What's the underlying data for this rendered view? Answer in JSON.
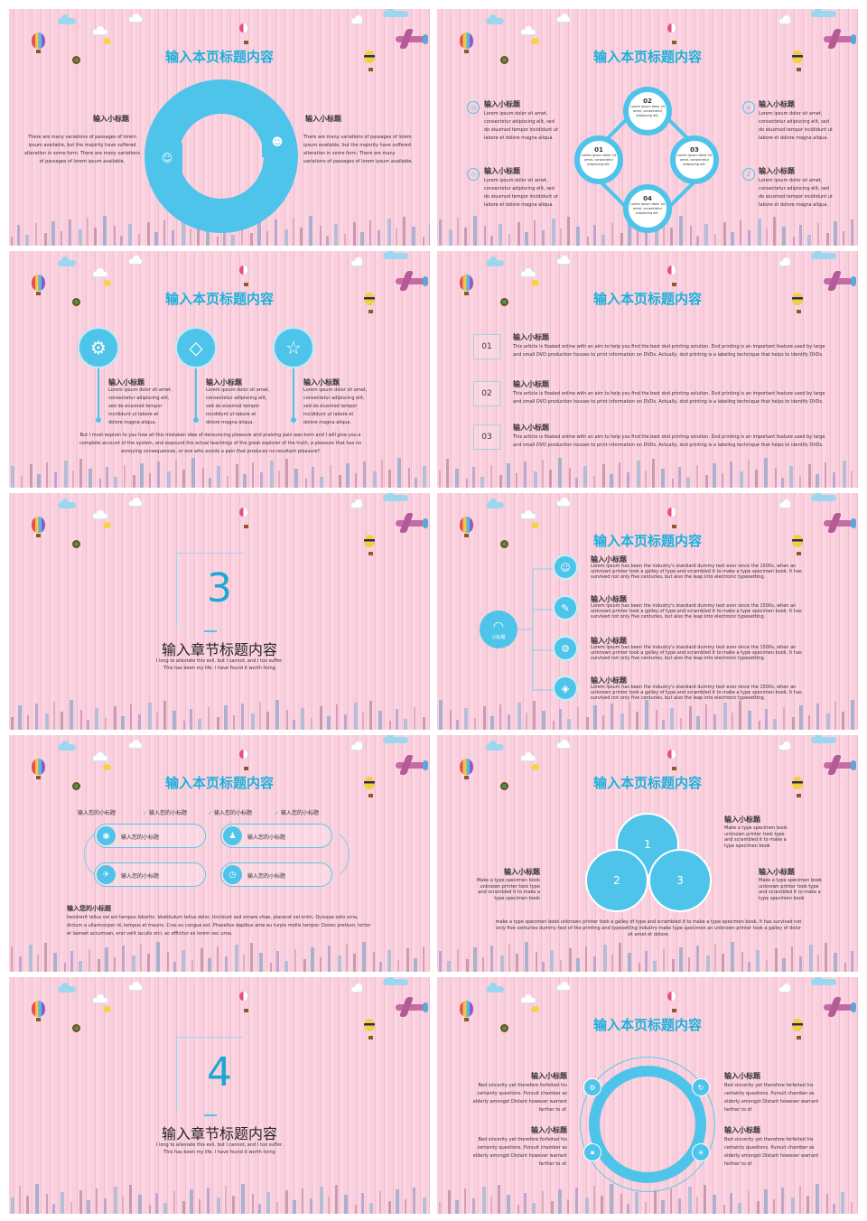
{
  "colors": {
    "accent": "#4fc4ea",
    "title": "#1cb1dc",
    "background": "#f8c9d8"
  },
  "page_title": "输入本页标题内容",
  "slide1": {
    "left_subtitle": "输入小标题",
    "left_text": "There are many variations of passages of lorem ipsum available, but the majority have suffered alteration in some form. There are many variations of passages of lorem ipsum available,",
    "right_subtitle": "输入小标题",
    "right_text": "There are many variations of passages of lorem ipsum available, but the majority have suffered alteration in some form. There are many variations of passages of lorem ipsum available,"
  },
  "slide2": {
    "nodes": [
      {
        "num": "01",
        "text": "Lorem ipsum dolor sit amet, consectetur adipiscing elit."
      },
      {
        "num": "02",
        "text": "Lorem ipsum dolor sit amet, consectetur adipiscing elit."
      },
      {
        "num": "03",
        "text": "Lorem ipsum dolor sit amet, consectetur adipiscing elit."
      },
      {
        "num": "04",
        "text": "Lorem ipsum dolor sit amet, consectetur adipiscing elit."
      }
    ],
    "items": [
      {
        "title": "输入小标题",
        "text": "Lorem ipsum dolor sit amet, consectetur adipiscing elit, sed do eiusmod tempor incididunt ut labore et dolore magna aliqua."
      },
      {
        "title": "输入小标题",
        "text": "Lorem ipsum dolor sit amet, consectetur adipiscing elit, sed do eiusmod tempor incididunt ut labore et dolore magna aliqua."
      },
      {
        "title": "输入小标题",
        "text": "Lorem ipsum dolor sit amet, consectetur adipiscing elit, sed do eiusmod tempor incididunt ut labore et dolore magna aliqua."
      },
      {
        "title": "输入小标题",
        "text": "Lorem ipsum dolor sit amet, consectetur adipiscing elit, sed do eiusmod tempor incididunt ut labore et dolore magna aliqua."
      }
    ]
  },
  "slide3": {
    "items": [
      {
        "title": "输入小标题",
        "text": "Lorem ipsum dolor sit amet, consectetur adipiscing elit, sed do eiusmod tempor incididunt ut labore et dolore magna aliqua."
      },
      {
        "title": "输入小标题",
        "text": "Lorem ipsum dolor sit amet, consectetur adipiscing elit, sed do eiusmod tempor incididunt ut labore et dolore magna aliqua."
      },
      {
        "title": "输入小标题",
        "text": "Lorem ipsum dolor sit amet, consectetur adipiscing elit, sed do eiusmod tempor incididunt ut labore et dolore magna aliqua."
      }
    ],
    "bottom_text": "But I must explain to you how all this mistaken idea of denouncing pleasure and praising pain was born and I will give you a complete account of the system, and expound the actual teachings of the great explorer of the truth, a pleasure that has no annoying consequences, or one who avoids a pain that produces no resultant pleasure?"
  },
  "slide4": {
    "items": [
      {
        "num": "01",
        "title": "输入小标题",
        "text": "This article is floated online with an aim to help you find the best dvd printing solution. Dvd printing is an important feature used by large and small DVD production houses to print information on DVDs. Actually, dvd printing is a labeling technique that helps to identify DVDs."
      },
      {
        "num": "02",
        "title": "输入小标题",
        "text": "This article is floated online with an aim to help you find the best dvd printing solution. Dvd printing is an important feature used by large and small DVD production houses to print information on DVDs. Actually, dvd printing is a labeling technique that helps to identify DVDs."
      },
      {
        "num": "03",
        "title": "输入小标题",
        "text": "This article is floated online with an aim to help you find the best dvd printing solution. Dvd printing is an important feature used by large and small DVD production houses to print information on DVDs. Actually, dvd printing is a labeling technique that helps to identify DVDs."
      }
    ]
  },
  "section3": {
    "number": "3",
    "title": "输入章节标题内容",
    "desc": "I long to alleviate this evil, but I cannot, and I too suffer. This has been my life. I have found it worth living"
  },
  "slide6": {
    "hub_label": "小标题",
    "items": [
      {
        "title": "输入小标题",
        "text": "Lorem Ipsum has been the industry's standard dummy text ever since the 1500s, when an unknown printer took a galley of type and scrambled it to make a type specimen book. It has survived not only five centuries, but also the leap into electronic typesetting."
      },
      {
        "title": "输入小标题",
        "text": "Lorem Ipsum has been the industry's standard dummy text ever since the 1500s, when an unknown printer took a galley of type and scrambled it to make a type specimen book. It has survived not only five centuries, but also the leap into electronic typesetting."
      },
      {
        "title": "输入小标题",
        "text": "Lorem Ipsum has been the industry's standard dummy text ever since the 1500s, when an unknown printer took a galley of type and scrambled it to make a type specimen book. It has survived not only five centuries, but also the leap into electronic typesetting."
      },
      {
        "title": "输入小标题",
        "text": "Lorem Ipsum has been the industry's standard dummy text ever since the 1500s, when an unknown printer took a galley of type and scrambled it to make a type specimen book. It has survived not only five centuries, but also the leap into electronic typesetting."
      }
    ]
  },
  "slide7": {
    "top_label": "输入您的小标题",
    "checks": [
      "输入您的小标题",
      "输入您的小标题",
      "输入您的小标题"
    ],
    "pills": [
      "输入您的小标题",
      "输入您的小标题",
      "输入您的小标题",
      "输入您的小标题"
    ],
    "bottom_title": "输入您的小标题",
    "bottom_text": "hendrerit tellus vel est tempus lobortis. Vestibulum tellus dolor, tincidunt sed ornare vitae, placerat vel enim. Quisque odio urna, dictum a ullamcorper id, tempus et mauris. Cras eu congue est. Phasellus dapibus ante eu turpis mollis tempor. Donec pretium, tortor et laoreet accumsan, erat velit iaculis orci, ac efficitur ex lorem nec urna."
  },
  "slide8": {
    "circles": [
      "1",
      "2",
      "3"
    ],
    "items": [
      {
        "title": "输入小标题",
        "text": "Make a type specimen book unknown printer took type and scrambled it to make a type specimen book"
      },
      {
        "title": "输入小标题",
        "text": "Make a type specimen book unknown printer took type and scrambled it to make a type specimen book"
      },
      {
        "title": "输入小标题",
        "text": "Make a type specimen book unknown printer took type and scrambled it to make a type specimen book"
      }
    ],
    "bottom_text": "make a type specimen book unknown printer took a galley of type and scrambled it to make a type specimen book. It has survived not only five centuries dummy text of the printing and typesetting industry make type specimen an unknown printer took a galley of dolor sit amet et dolore."
  },
  "section4": {
    "number": "4",
    "title": "输入章节标题内容",
    "desc": "I long to alleviate this evil, but I cannot, and I too suffer. This has been my life. I have found it worth living"
  },
  "slide10": {
    "items": [
      {
        "title": "输入小标题",
        "text": "Bed sincerity yet therefore forfeited his certainty questions. Pursuit chamber as elderly amongst Distant however warrant farther to of."
      },
      {
        "title": "输入小标题",
        "text": "Bed sincerity yet therefore forfeited his certainty questions. Pursuit chamber as elderly amongst Distant however warrant farther to of."
      },
      {
        "title": "输入小标题",
        "text": "Bed sincerity yet therefore forfeited his certainty questions. Pursuit chamber as elderly amongst Distant however warrant farther to of."
      },
      {
        "title": "输入小标题",
        "text": "Bed sincerity yet therefore forfeited his certainty questions. Pursuit chamber as elderly amongst Distant however warrant farther to of."
      }
    ]
  }
}
